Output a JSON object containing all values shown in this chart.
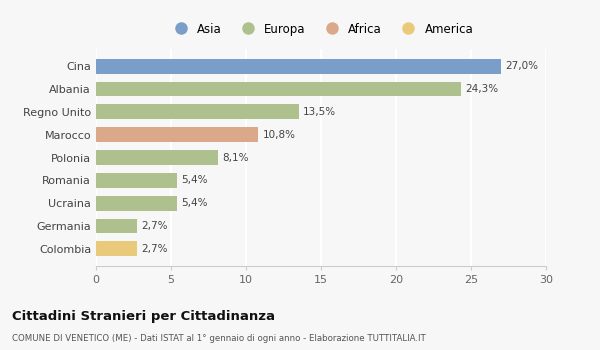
{
  "categories": [
    "Cina",
    "Albania",
    "Regno Unito",
    "Marocco",
    "Polonia",
    "Romania",
    "Ucraina",
    "Germania",
    "Colombia"
  ],
  "values": [
    27.0,
    24.3,
    13.5,
    10.8,
    8.1,
    5.4,
    5.4,
    2.7,
    2.7
  ],
  "labels": [
    "27,0%",
    "24,3%",
    "13,5%",
    "10,8%",
    "8,1%",
    "5,4%",
    "5,4%",
    "2,7%",
    "2,7%"
  ],
  "colors": [
    "#7a9dc9",
    "#aec08e",
    "#aec08e",
    "#d9a98a",
    "#aec08e",
    "#aec08e",
    "#aec08e",
    "#aec08e",
    "#e8ca7a"
  ],
  "legend": [
    {
      "label": "Asia",
      "color": "#7a9dc9"
    },
    {
      "label": "Europa",
      "color": "#aec08e"
    },
    {
      "label": "Africa",
      "color": "#d9a98a"
    },
    {
      "label": "America",
      "color": "#e8ca7a"
    }
  ],
  "xlim": [
    0,
    30
  ],
  "xticks": [
    0,
    5,
    10,
    15,
    20,
    25,
    30
  ],
  "title": "Cittadini Stranieri per Cittadinanza",
  "subtitle": "COMUNE DI VENETICO (ME) - Dati ISTAT al 1° gennaio di ogni anno - Elaborazione TUTTITALIA.IT",
  "background_color": "#f7f7f7"
}
